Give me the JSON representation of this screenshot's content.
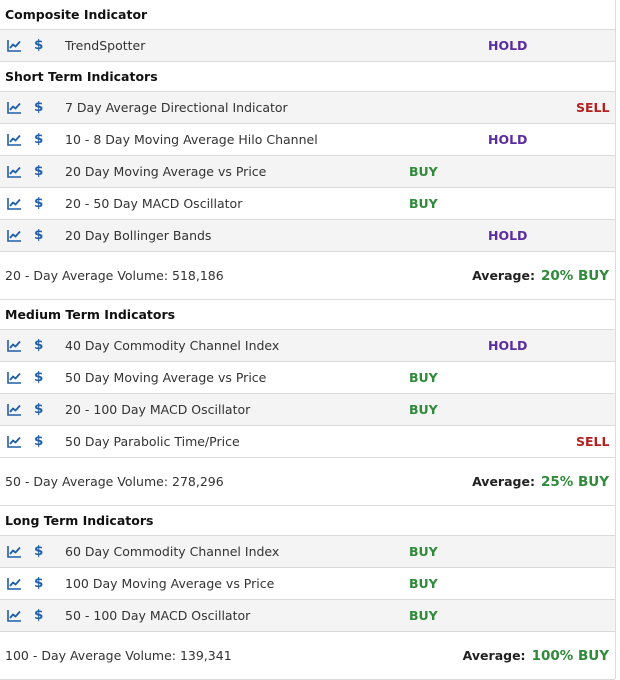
{
  "sections": [
    {
      "title": "Composite Indicator",
      "rows": [
        {
          "name": "TrendSpotter",
          "signal": "HOLD"
        }
      ]
    },
    {
      "title": "Short Term Indicators",
      "rows": [
        {
          "name": "7 Day Average Directional Indicator",
          "signal": "SELL"
        },
        {
          "name": "10 - 8 Day Moving Average Hilo Channel",
          "signal": "HOLD"
        },
        {
          "name": "20 Day Moving Average vs Price",
          "signal": "BUY"
        },
        {
          "name": "20 - 50 Day MACD Oscillator",
          "signal": "BUY"
        },
        {
          "name": "20 Day Bollinger Bands",
          "signal": "HOLD"
        }
      ],
      "summary": {
        "volume": "20 - Day Average Volume: 518,186",
        "average_label": "Average:",
        "average_value": "20% BUY"
      }
    },
    {
      "title": "Medium Term Indicators",
      "rows": [
        {
          "name": "40 Day Commodity Channel Index",
          "signal": "HOLD"
        },
        {
          "name": "50 Day Moving Average vs Price",
          "signal": "BUY"
        },
        {
          "name": "20 - 100 Day MACD Oscillator",
          "signal": "BUY"
        },
        {
          "name": "50 Day Parabolic Time/Price",
          "signal": "SELL"
        }
      ],
      "summary": {
        "volume": "50 - Day Average Volume: 278,296",
        "average_label": "Average:",
        "average_value": "25% BUY"
      }
    },
    {
      "title": "Long Term Indicators",
      "rows": [
        {
          "name": "60 Day Commodity Channel Index",
          "signal": "BUY"
        },
        {
          "name": "100 Day Moving Average vs Price",
          "signal": "BUY"
        },
        {
          "name": "50 - 100 Day MACD Oscillator",
          "signal": "BUY"
        }
      ],
      "summary": {
        "volume": "100 - Day Average Volume: 139,341",
        "average_label": "Average:",
        "average_value": "100% BUY"
      }
    }
  ],
  "icons": {
    "chart": "line-chart-icon",
    "dollar": "$"
  },
  "colors": {
    "buy": "#2f8a3a",
    "hold": "#5b2ca0",
    "sell": "#b52020",
    "icon": "#1f5fa8"
  }
}
